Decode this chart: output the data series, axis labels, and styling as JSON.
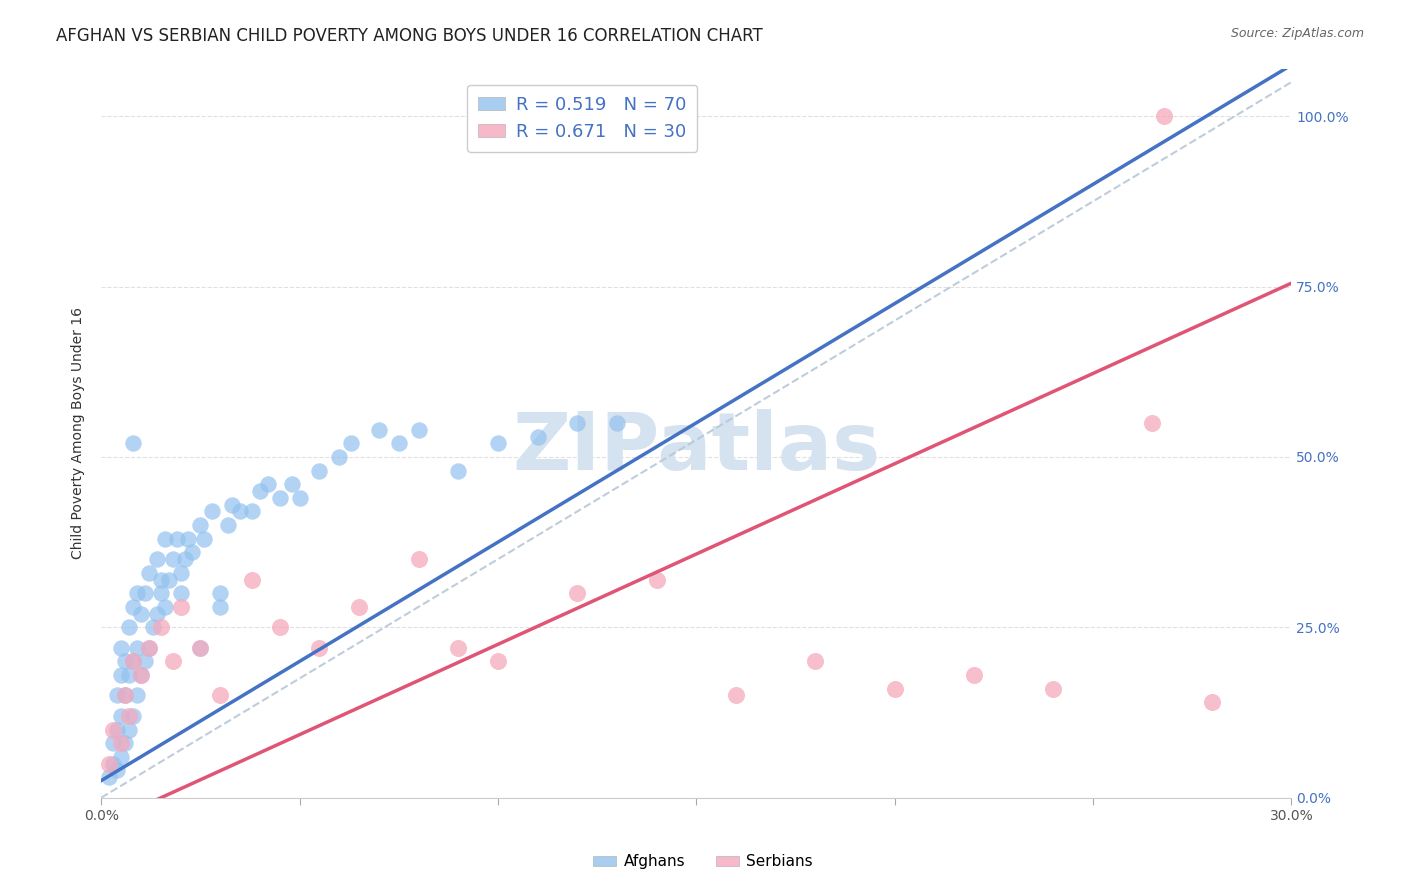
{
  "title": "AFGHAN VS SERBIAN CHILD POVERTY AMONG BOYS UNDER 16 CORRELATION CHART",
  "source": "Source: ZipAtlas.com",
  "ylabel": "Child Poverty Among Boys Under 16",
  "xlim": [
    0.0,
    0.3
  ],
  "ylim": [
    0.0,
    1.07
  ],
  "yticks": [
    0.0,
    0.25,
    0.5,
    0.75,
    1.0
  ],
  "ytick_labels": [
    "0.0%",
    "25.0%",
    "50.0%",
    "75.0%",
    "100.0%"
  ],
  "xticks": [
    0.0,
    0.05,
    0.1,
    0.15,
    0.2,
    0.25,
    0.3
  ],
  "xtick_labels": [
    "0.0%",
    "",
    "",
    "",
    "",
    "",
    "30.0%"
  ],
  "afghan_color": "#92C1EE",
  "serbian_color": "#F5A8BC",
  "afghan_line_color": "#4472C4",
  "serbian_line_color": "#E05575",
  "diagonal_color": "#B8C8D8",
  "watermark_text": "ZIPatlas",
  "watermark_color": "#D5E3F0",
  "background_color": "#ffffff",
  "grid_color": "#DDDDDD",
  "title_fontsize": 12,
  "axis_label_fontsize": 10,
  "tick_fontsize": 10,
  "legend_fontsize": 13,
  "watermark_fontsize": 58,
  "right_tick_color": "#4472C4",
  "legend_R_color": "#4472C4",
  "legend_N_color": "#4472C4",
  "afghan_line_intercept": 0.025,
  "afghan_line_slope": 3.5,
  "serbian_line_intercept": -0.04,
  "serbian_line_slope": 2.65,
  "afghan_points_x": [
    0.002,
    0.003,
    0.003,
    0.004,
    0.004,
    0.004,
    0.005,
    0.005,
    0.005,
    0.005,
    0.006,
    0.006,
    0.006,
    0.007,
    0.007,
    0.007,
    0.008,
    0.008,
    0.008,
    0.009,
    0.009,
    0.009,
    0.01,
    0.01,
    0.011,
    0.011,
    0.012,
    0.012,
    0.013,
    0.014,
    0.014,
    0.015,
    0.016,
    0.016,
    0.017,
    0.018,
    0.019,
    0.02,
    0.021,
    0.022,
    0.023,
    0.025,
    0.026,
    0.028,
    0.03,
    0.032,
    0.033,
    0.035,
    0.038,
    0.04,
    0.042,
    0.045,
    0.048,
    0.05,
    0.055,
    0.06,
    0.063,
    0.07,
    0.075,
    0.08,
    0.09,
    0.1,
    0.11,
    0.12,
    0.13,
    0.008,
    0.015,
    0.02,
    0.025,
    0.03
  ],
  "afghan_points_y": [
    0.03,
    0.05,
    0.08,
    0.04,
    0.1,
    0.15,
    0.06,
    0.12,
    0.18,
    0.22,
    0.08,
    0.15,
    0.2,
    0.1,
    0.18,
    0.25,
    0.12,
    0.2,
    0.28,
    0.15,
    0.22,
    0.3,
    0.18,
    0.27,
    0.2,
    0.3,
    0.22,
    0.33,
    0.25,
    0.27,
    0.35,
    0.3,
    0.28,
    0.38,
    0.32,
    0.35,
    0.38,
    0.33,
    0.35,
    0.38,
    0.36,
    0.4,
    0.38,
    0.42,
    0.3,
    0.4,
    0.43,
    0.42,
    0.42,
    0.45,
    0.46,
    0.44,
    0.46,
    0.44,
    0.48,
    0.5,
    0.52,
    0.54,
    0.52,
    0.54,
    0.48,
    0.52,
    0.53,
    0.55,
    0.55,
    0.52,
    0.32,
    0.3,
    0.22,
    0.28
  ],
  "serbian_points_x": [
    0.002,
    0.003,
    0.005,
    0.006,
    0.007,
    0.008,
    0.01,
    0.012,
    0.015,
    0.018,
    0.02,
    0.025,
    0.03,
    0.038,
    0.045,
    0.055,
    0.065,
    0.08,
    0.09,
    0.1,
    0.12,
    0.14,
    0.16,
    0.18,
    0.2,
    0.22,
    0.24,
    0.265,
    0.268,
    0.28
  ],
  "serbian_points_y": [
    0.05,
    0.1,
    0.08,
    0.15,
    0.12,
    0.2,
    0.18,
    0.22,
    0.25,
    0.2,
    0.28,
    0.22,
    0.15,
    0.32,
    0.25,
    0.22,
    0.28,
    0.35,
    0.22,
    0.2,
    0.3,
    0.32,
    0.15,
    0.2,
    0.16,
    0.18,
    0.16,
    0.55,
    1.0,
    0.14
  ]
}
